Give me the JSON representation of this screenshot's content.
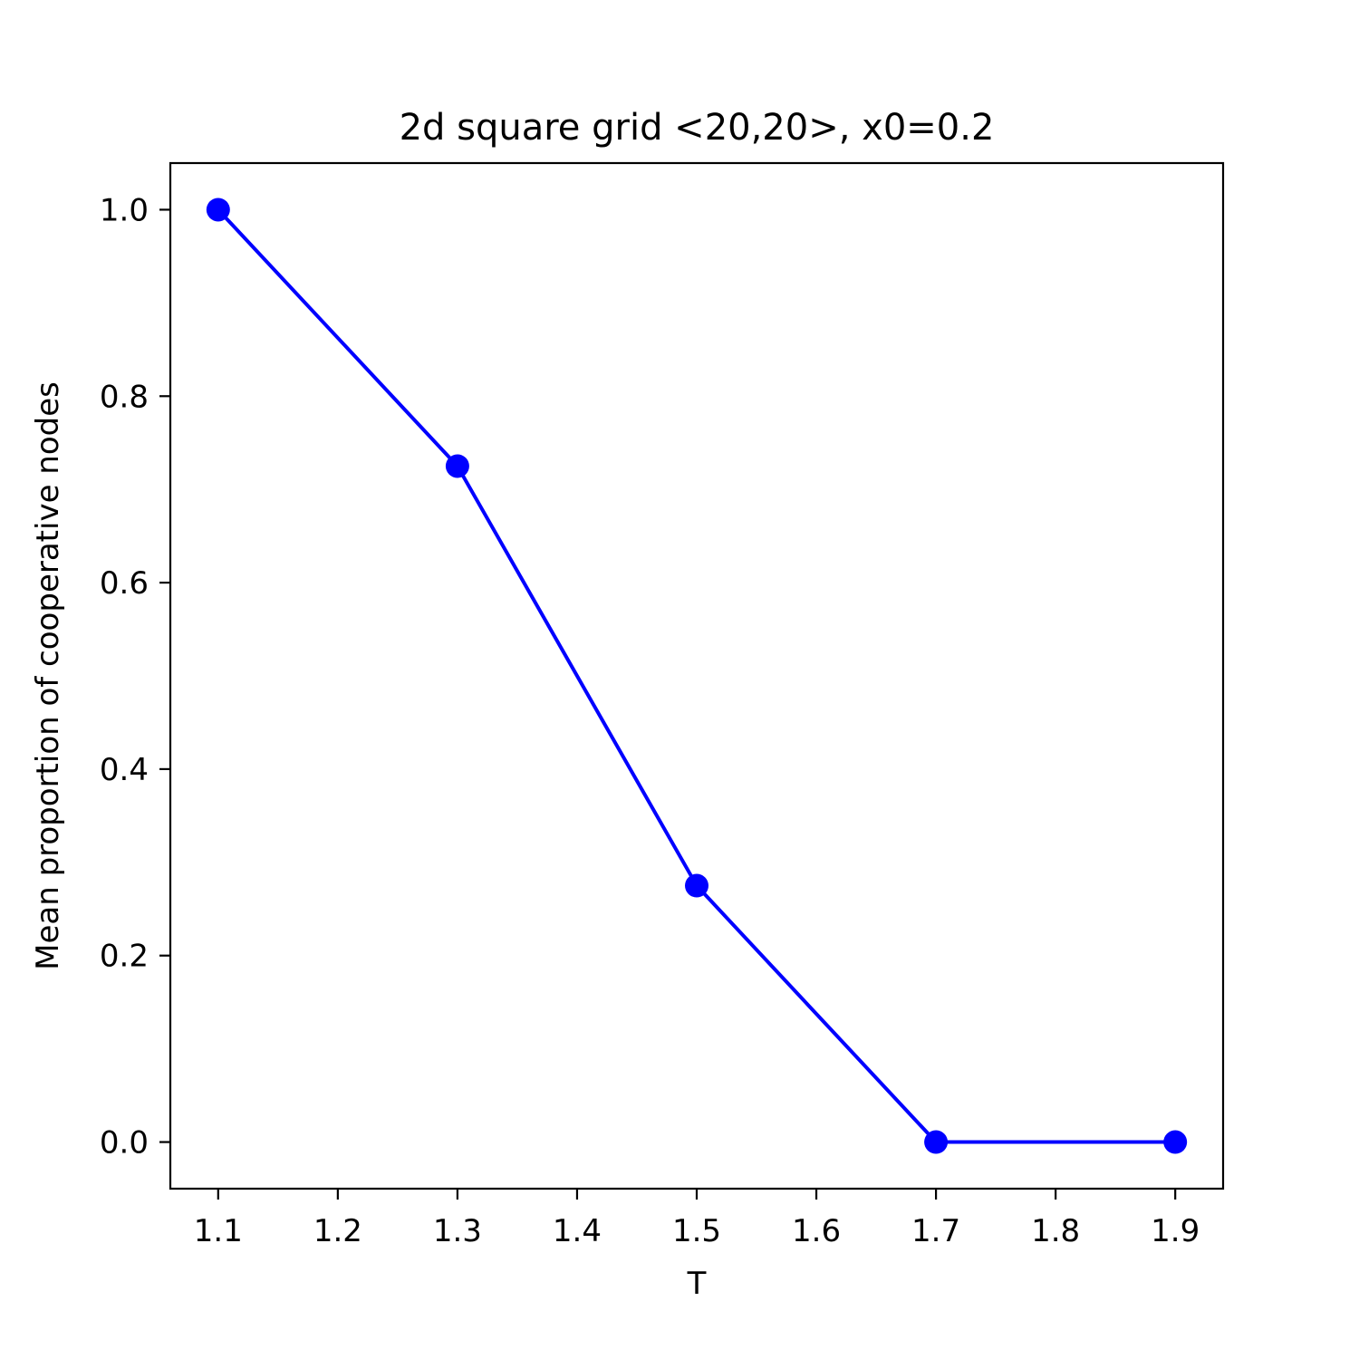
{
  "chart_data": {
    "type": "line",
    "title": "2d square grid <20,20>, x0=0.2",
    "xlabel": "T",
    "ylabel": "Mean proportion of cooperative nodes",
    "xlim": [
      1.06,
      1.94
    ],
    "ylim": [
      -0.05,
      1.05
    ],
    "xticks": [
      1.1,
      1.2,
      1.3,
      1.4,
      1.5,
      1.6,
      1.7,
      1.8,
      1.9
    ],
    "xtick_labels": [
      "1.1",
      "1.2",
      "1.3",
      "1.4",
      "1.5",
      "1.6",
      "1.7",
      "1.8",
      "1.9"
    ],
    "yticks": [
      0.0,
      0.2,
      0.4,
      0.6,
      0.8,
      1.0
    ],
    "ytick_labels": [
      "0.0",
      "0.2",
      "0.4",
      "0.6",
      "0.8",
      "1.0"
    ],
    "grid": false,
    "series": [
      {
        "color": "#0000ff",
        "marker": "circle",
        "x": [
          1.1,
          1.3,
          1.5,
          1.7,
          1.9
        ],
        "y": [
          1.0,
          0.725,
          0.275,
          0.0,
          0.0
        ]
      }
    ]
  }
}
